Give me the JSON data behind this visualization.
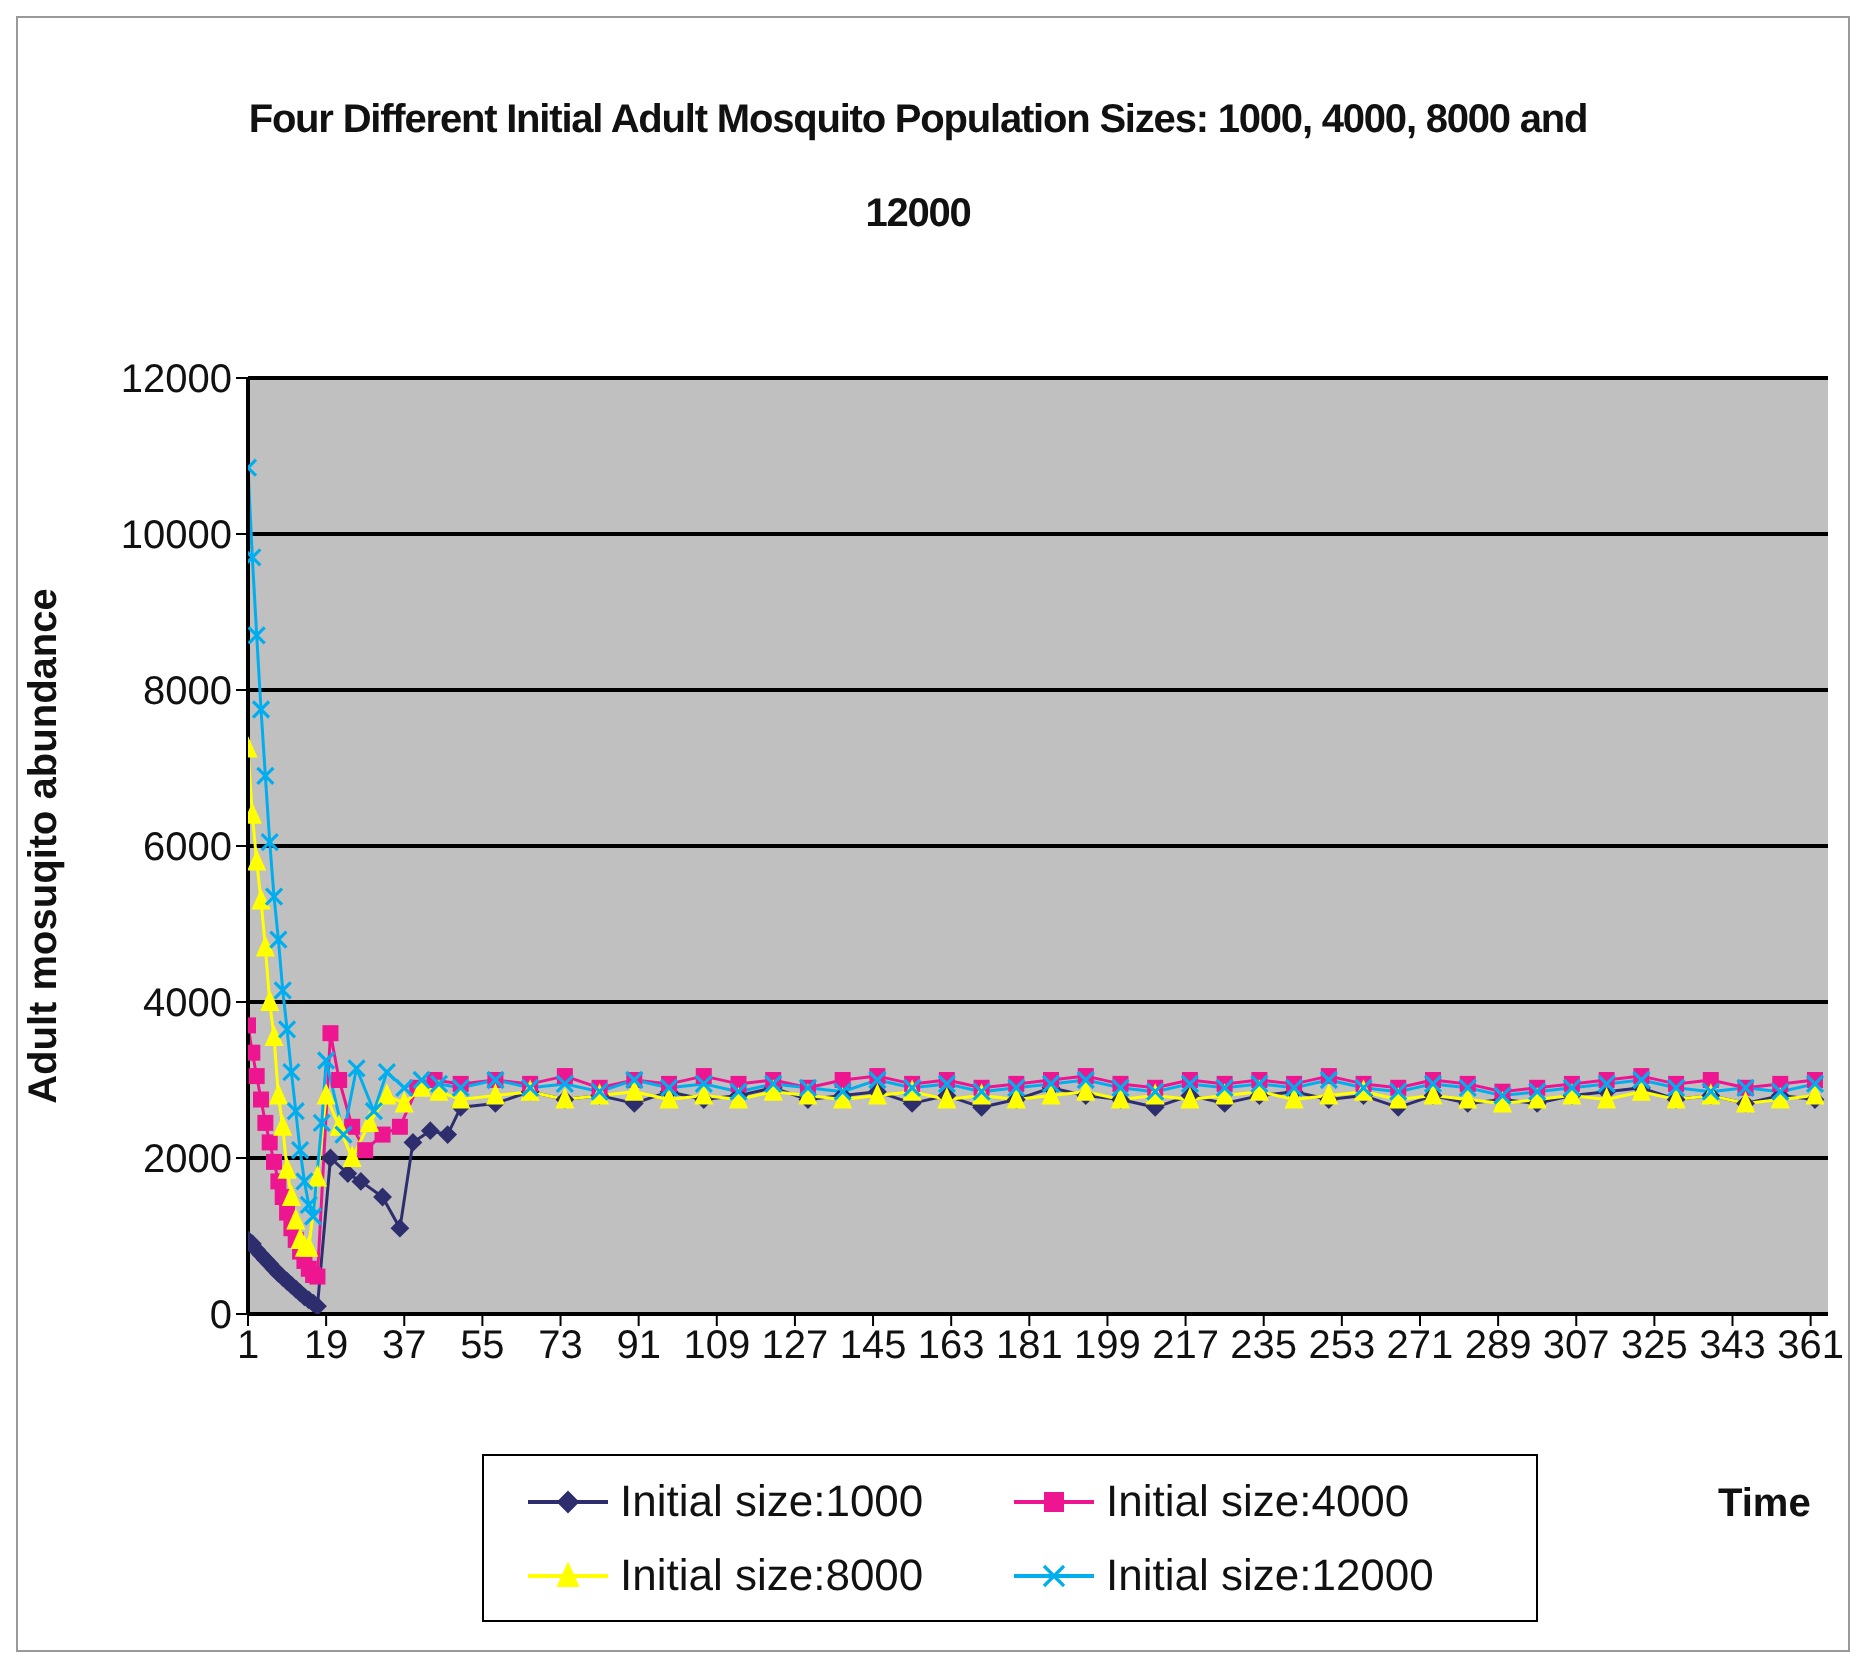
{
  "chart_data": {
    "type": "line",
    "title": "Four Different Initial Adult Mosquito Population Sizes: 1000, 4000, 8000 and 12000",
    "xlabel": "Time",
    "ylabel": "Adult mosuqito abundance",
    "xlim": [
      1,
      365
    ],
    "xticks": [
      1,
      19,
      37,
      55,
      73,
      91,
      109,
      127,
      145,
      163,
      181,
      199,
      217,
      235,
      253,
      271,
      289,
      307,
      325,
      343,
      361
    ],
    "ylim": [
      0,
      12000
    ],
    "yticks": [
      0,
      2000,
      4000,
      6000,
      8000,
      10000,
      12000
    ],
    "grid": "y",
    "legend": "bottom",
    "line_style": "solid",
    "series": [
      {
        "name": "Initial size:1000",
        "color": "#2e2e6e",
        "marker": "diamond",
        "x": [
          1,
          2,
          3,
          4,
          5,
          6,
          7,
          8,
          9,
          10,
          11,
          12,
          13,
          14,
          15,
          16,
          17,
          20,
          24,
          27,
          32,
          36,
          39,
          43,
          47,
          50,
          58,
          66,
          74,
          82,
          90,
          98,
          106,
          114,
          122,
          130,
          138,
          146,
          154,
          162,
          170,
          178,
          186,
          194,
          202,
          210,
          218,
          226,
          234,
          242,
          250,
          258,
          266,
          274,
          282,
          290,
          298,
          306,
          314,
          322,
          330,
          338,
          346,
          354,
          362
        ],
        "values": [
          950,
          900,
          820,
          760,
          700,
          640,
          580,
          520,
          470,
          420,
          370,
          320,
          270,
          220,
          180,
          140,
          100,
          2000,
          1800,
          1700,
          1500,
          1100,
          2200,
          2350,
          2300,
          2650,
          2700,
          2850,
          2750,
          2800,
          2700,
          2850,
          2750,
          2800,
          2900,
          2750,
          2800,
          2850,
          2700,
          2800,
          2650,
          2750,
          2900,
          2800,
          2750,
          2650,
          2800,
          2700,
          2800,
          2850,
          2750,
          2800,
          2650,
          2800,
          2700,
          2750,
          2700,
          2800,
          2850,
          2900,
          2750,
          2800,
          2700,
          2800,
          2750
        ]
      },
      {
        "name": "Initial size:4000",
        "color": "#ee1690",
        "marker": "square",
        "x": [
          1,
          2,
          3,
          4,
          5,
          6,
          7,
          8,
          9,
          10,
          11,
          12,
          13,
          14,
          15,
          16,
          17,
          20,
          22,
          25,
          28,
          32,
          36,
          40,
          44,
          50,
          58,
          66,
          74,
          82,
          90,
          98,
          106,
          114,
          122,
          130,
          138,
          146,
          154,
          162,
          170,
          178,
          186,
          194,
          202,
          210,
          218,
          226,
          234,
          242,
          250,
          258,
          266,
          274,
          282,
          290,
          298,
          306,
          314,
          322,
          330,
          338,
          346,
          354,
          362
        ],
        "values": [
          3700,
          3350,
          3050,
          2750,
          2450,
          2200,
          1950,
          1700,
          1500,
          1300,
          1100,
          950,
          800,
          680,
          580,
          500,
          480,
          3600,
          3000,
          2400,
          2100,
          2300,
          2400,
          2900,
          3000,
          2950,
          3000,
          2950,
          3050,
          2900,
          3000,
          2950,
          3050,
          2950,
          3000,
          2900,
          3000,
          3050,
          2950,
          3000,
          2900,
          2950,
          3000,
          3050,
          2950,
          2900,
          3000,
          2950,
          3000,
          2950,
          3050,
          2950,
          2900,
          3000,
          2950,
          2850,
          2900,
          2950,
          3000,
          3050,
          2950,
          3000,
          2900,
          2950,
          3000
        ]
      },
      {
        "name": "Initial size:8000",
        "color": "#ffff00",
        "marker": "triangle",
        "x": [
          1,
          2,
          3,
          4,
          5,
          6,
          7,
          8,
          9,
          10,
          11,
          12,
          13,
          14,
          15,
          17,
          19,
          22,
          25,
          29,
          33,
          37,
          41,
          45,
          50,
          58,
          66,
          74,
          82,
          90,
          98,
          106,
          114,
          122,
          130,
          138,
          146,
          154,
          162,
          170,
          178,
          186,
          194,
          202,
          210,
          218,
          226,
          234,
          242,
          250,
          258,
          266,
          274,
          282,
          290,
          298,
          306,
          314,
          322,
          330,
          338,
          346,
          354,
          362
        ],
        "values": [
          7250,
          6400,
          5800,
          5300,
          4700,
          4000,
          3550,
          2800,
          2400,
          1850,
          1500,
          1200,
          950,
          850,
          850,
          1750,
          2800,
          2400,
          2000,
          2450,
          2800,
          2700,
          2900,
          2850,
          2750,
          2800,
          2850,
          2750,
          2800,
          2850,
          2750,
          2800,
          2750,
          2850,
          2800,
          2750,
          2800,
          2850,
          2750,
          2800,
          2750,
          2800,
          2850,
          2750,
          2800,
          2750,
          2800,
          2850,
          2750,
          2800,
          2850,
          2750,
          2800,
          2750,
          2700,
          2750,
          2800,
          2750,
          2850,
          2750,
          2800,
          2700,
          2750,
          2800
        ]
      },
      {
        "name": "Initial size:12000",
        "color": "#00aeef",
        "marker": "cross",
        "x": [
          1,
          2,
          3,
          4,
          5,
          6,
          7,
          8,
          9,
          10,
          11,
          12,
          13,
          14,
          15,
          16,
          18,
          19,
          23,
          26,
          30,
          33,
          37,
          41,
          45,
          50,
          58,
          66,
          74,
          82,
          90,
          98,
          106,
          114,
          122,
          130,
          138,
          146,
          154,
          162,
          170,
          178,
          186,
          194,
          202,
          210,
          218,
          226,
          234,
          242,
          250,
          258,
          266,
          274,
          282,
          290,
          298,
          306,
          314,
          322,
          330,
          338,
          346,
          354,
          362
        ],
        "values": [
          10850,
          9700,
          8700,
          7750,
          6900,
          6050,
          5350,
          4800,
          4150,
          3650,
          3100,
          2600,
          2100,
          1700,
          1400,
          1250,
          2450,
          3250,
          2300,
          3150,
          2600,
          3100,
          2900,
          3000,
          2950,
          2900,
          3000,
          2900,
          2950,
          2850,
          3000,
          2900,
          2950,
          2850,
          2950,
          2900,
          2850,
          3000,
          2900,
          2950,
          2850,
          2900,
          2950,
          3000,
          2900,
          2850,
          2950,
          2900,
          2950,
          2900,
          3000,
          2900,
          2850,
          2950,
          2900,
          2800,
          2850,
          2900,
          2950,
          3000,
          2900,
          2850,
          2900,
          2850,
          2950
        ]
      }
    ]
  }
}
